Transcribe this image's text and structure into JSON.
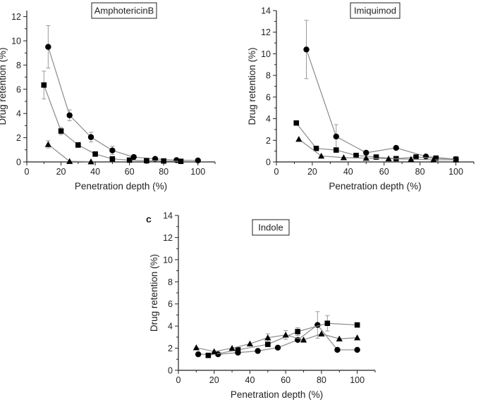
{
  "chart_data": [
    {
      "type": "scatter",
      "title": "AmphotericinB",
      "panel_letter": "",
      "xlabel": "Penetration depth (%)",
      "ylabel": "Drug retention (%)",
      "xlim": [
        0,
        110
      ],
      "ylim": [
        0,
        12.5
      ],
      "xticks": [
        0,
        20,
        40,
        60,
        80,
        100
      ],
      "yticks": [
        0,
        2,
        4,
        6,
        8,
        10,
        12
      ],
      "series": [
        {
          "name": "circle",
          "marker": "circle",
          "x": [
            12.5,
            25,
            37.5,
            50,
            62.5,
            75,
            87.5,
            100
          ],
          "y": [
            9.5,
            3.85,
            2.05,
            0.95,
            0.4,
            0.25,
            0.15,
            0.12
          ],
          "err": [
            1.75,
            0.45,
            0.4,
            0.35,
            0.1,
            0,
            0,
            0
          ]
        },
        {
          "name": "square",
          "marker": "square",
          "x": [
            10,
            20,
            30,
            40,
            50,
            60,
            70,
            80,
            90
          ],
          "y": [
            6.35,
            2.55,
            1.4,
            0.65,
            0.25,
            0.15,
            0.1,
            0.08,
            0.05
          ],
          "err": [
            1.15,
            0.3,
            0.2,
            0,
            0,
            0,
            0,
            0,
            0
          ]
        },
        {
          "name": "triangle",
          "marker": "triangle",
          "x": [
            12.5,
            25,
            37.5
          ],
          "y": [
            1.45,
            0.05,
            0.02
          ],
          "err": [
            0.3,
            0,
            0
          ]
        }
      ]
    },
    {
      "type": "scatter",
      "title": "Imiquimod",
      "panel_letter": "",
      "xlabel": "Penetration depth (%)",
      "ylabel": "Drug retention (%)",
      "xlim": [
        0,
        110
      ],
      "ylim": [
        0,
        14
      ],
      "xticks": [
        0,
        20,
        40,
        60,
        80,
        100
      ],
      "yticks": [
        0,
        2,
        4,
        6,
        8,
        10,
        12,
        14
      ],
      "series": [
        {
          "name": "circle",
          "marker": "circle",
          "x": [
            16.7,
            33.3,
            50,
            66.7,
            83.3,
            100
          ],
          "y": [
            10.4,
            2.35,
            0.85,
            1.3,
            0.5,
            0.25
          ],
          "err": [
            2.7,
            1.1,
            0,
            0,
            0,
            0
          ]
        },
        {
          "name": "square",
          "marker": "square",
          "x": [
            11.1,
            22.2,
            33.3,
            44.4,
            55.6,
            66.7,
            77.8,
            88.9,
            100
          ],
          "y": [
            3.6,
            1.25,
            1.1,
            0.6,
            0.45,
            0.3,
            0.45,
            0.35,
            0.25
          ],
          "err": [
            0,
            0,
            0,
            0,
            0,
            0,
            0,
            0,
            0
          ]
        },
        {
          "name": "triangle",
          "marker": "triangle",
          "x": [
            12.5,
            25,
            37.5,
            50,
            62.5,
            75,
            87.5,
            100
          ],
          "y": [
            2.1,
            0.55,
            0.4,
            0.35,
            0.3,
            0.25,
            0.2,
            0.2
          ],
          "err": [
            0,
            0,
            0,
            0,
            0,
            0,
            0,
            0
          ]
        }
      ]
    },
    {
      "type": "scatter",
      "title": "Indole",
      "panel_letter": "c",
      "xlabel": "Penetration depth (%)",
      "ylabel": "Drug retention (%)",
      "xlim": [
        0,
        110
      ],
      "ylim": [
        0,
        14
      ],
      "xticks": [
        0,
        20,
        40,
        60,
        80,
        100
      ],
      "yticks": [
        0,
        2,
        4,
        6,
        8,
        10,
        12,
        14
      ],
      "series": [
        {
          "name": "circle",
          "marker": "circle",
          "x": [
            11.1,
            22.2,
            33.3,
            44.4,
            55.6,
            66.7,
            77.8,
            88.9,
            100
          ],
          "y": [
            1.45,
            1.45,
            1.6,
            1.75,
            2.05,
            2.75,
            4.1,
            1.85,
            1.85
          ],
          "err": [
            0,
            0,
            0,
            0,
            0,
            0,
            1.2,
            0,
            0
          ]
        },
        {
          "name": "square",
          "marker": "square",
          "x": [
            16.7,
            33.3,
            50,
            66.7,
            83.3,
            100
          ],
          "y": [
            1.35,
            1.85,
            2.35,
            3.5,
            4.25,
            4.1
          ],
          "err": [
            0,
            0,
            0,
            0.35,
            0.7,
            0
          ]
        },
        {
          "name": "triangle",
          "marker": "triangle",
          "x": [
            10,
            20,
            30,
            40,
            50,
            60,
            70,
            80,
            90,
            100
          ],
          "y": [
            2.05,
            1.7,
            2.0,
            2.4,
            2.95,
            3.2,
            2.75,
            3.3,
            2.85,
            2.95
          ],
          "err": [
            0,
            0,
            0,
            0,
            0.35,
            0.4,
            0,
            0,
            0,
            0
          ]
        }
      ]
    }
  ]
}
